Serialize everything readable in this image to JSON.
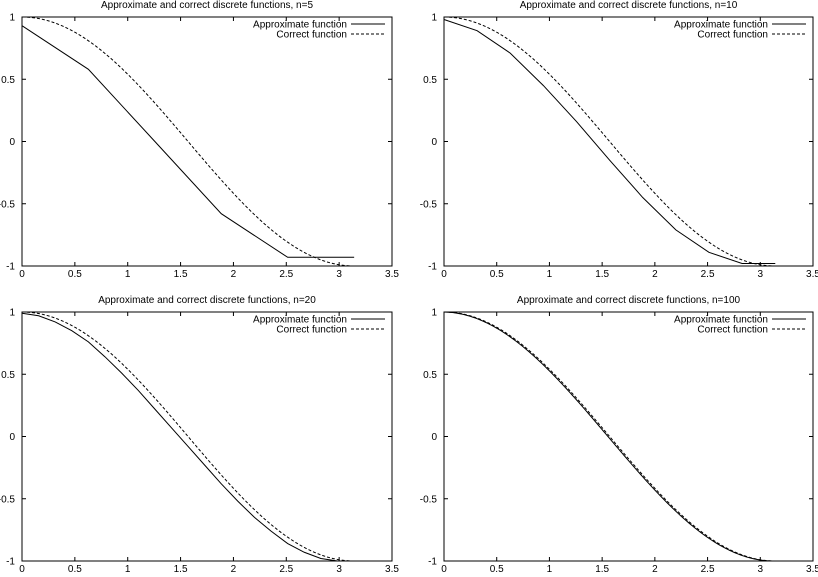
{
  "chart_data": [
    {
      "type": "line",
      "title": "Approximate and correct discrete functions, n=5",
      "xlim": [
        0,
        3.5
      ],
      "ylim": [
        -1,
        1
      ],
      "xticks": [
        "0",
        "0.5",
        "1",
        "1.5",
        "2",
        "2.5",
        "3",
        "3.5"
      ],
      "yticks": [
        "1",
        "0.5",
        "0",
        "-0.5",
        "-1"
      ],
      "legend_position": "top-right",
      "series": [
        {
          "name": "Approximate function",
          "style": "solid",
          "x": [
            0.0,
            0.628,
            1.257,
            1.885,
            2.513,
            3.142
          ],
          "y": [
            0.93,
            0.58,
            0.0,
            -0.58,
            -0.93,
            -0.93
          ]
        },
        {
          "name": "Correct function",
          "style": "dashed",
          "function": "cos(x)",
          "x_range": [
            0,
            3.1416
          ]
        }
      ]
    },
    {
      "type": "line",
      "title": "Approximate and correct discrete functions, n=10",
      "xlim": [
        0,
        3.5
      ],
      "ylim": [
        -1,
        1
      ],
      "xticks": [
        "0",
        "0.5",
        "1",
        "1.5",
        "2",
        "2.5",
        "3",
        "3.5"
      ],
      "yticks": [
        "1",
        "0.5",
        "0",
        "-0.5",
        "-1"
      ],
      "legend_position": "top-right",
      "series": [
        {
          "name": "Approximate function",
          "style": "solid",
          "x": [
            0.0,
            0.314,
            0.628,
            0.942,
            1.257,
            1.571,
            1.885,
            2.199,
            2.513,
            2.827,
            3.142
          ],
          "y": [
            0.98,
            0.89,
            0.71,
            0.45,
            0.16,
            -0.15,
            -0.45,
            -0.71,
            -0.89,
            -0.98,
            -0.98
          ]
        },
        {
          "name": "Correct function",
          "style": "dashed",
          "function": "cos(x)",
          "x_range": [
            0,
            3.1416
          ]
        }
      ]
    },
    {
      "type": "line",
      "title": "Approximate and correct discrete functions, n=20",
      "xlim": [
        0,
        3.5
      ],
      "ylim": [
        -1,
        1
      ],
      "xticks": [
        "0",
        "0.5",
        "1",
        "1.5",
        "2",
        "2.5",
        "3",
        "3.5"
      ],
      "yticks": [
        "1",
        "0.5",
        "0",
        "-0.5",
        "-1"
      ],
      "legend_position": "top-right",
      "series": [
        {
          "name": "Approximate function",
          "style": "solid",
          "x": [
            0.0,
            0.157,
            0.314,
            0.471,
            0.628,
            0.785,
            0.942,
            1.1,
            1.257,
            1.414,
            1.571,
            1.728,
            1.885,
            2.042,
            2.199,
            2.356,
            2.513,
            2.67,
            2.827,
            2.985,
            3.142
          ],
          "y": [
            0.99,
            0.97,
            0.92,
            0.85,
            0.76,
            0.64,
            0.51,
            0.37,
            0.22,
            0.07,
            -0.08,
            -0.23,
            -0.38,
            -0.52,
            -0.65,
            -0.76,
            -0.86,
            -0.93,
            -0.98,
            -1.0,
            -1.0
          ]
        },
        {
          "name": "Correct function",
          "style": "dashed",
          "function": "cos(x)",
          "x_range": [
            0,
            3.1416
          ]
        }
      ]
    },
    {
      "type": "line",
      "title": "Approximate and correct discrete functions, n=100",
      "xlim": [
        0,
        3.5
      ],
      "ylim": [
        -1,
        1
      ],
      "xticks": [
        "0",
        "0.5",
        "1",
        "1.5",
        "2",
        "2.5",
        "3",
        "3.5"
      ],
      "yticks": [
        "1",
        "0.5",
        "0",
        "-0.5",
        "-1"
      ],
      "legend_position": "top-right",
      "series": [
        {
          "name": "Approximate function",
          "style": "solid",
          "function": "cos(x + 0.0157)",
          "x_range": [
            0,
            3.1416
          ]
        },
        {
          "name": "Correct function",
          "style": "dashed",
          "function": "cos(x)",
          "x_range": [
            0,
            3.1416
          ]
        }
      ]
    }
  ]
}
